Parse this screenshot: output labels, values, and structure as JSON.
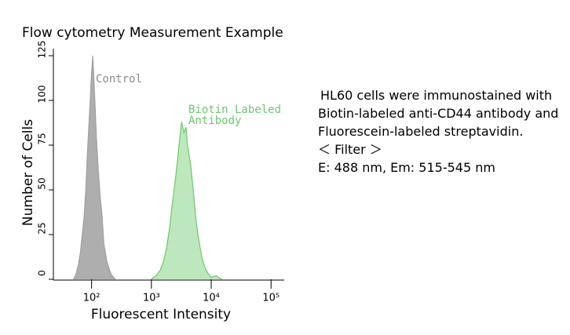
{
  "chart_data": {
    "type": "area",
    "title": "Flow cytometry Measurement Example",
    "xlabel": "Fluorescent Intensity",
    "ylabel": "Number of Cells",
    "xscale": "log",
    "xlim": [
      23,
      166000
    ],
    "ylim": [
      0,
      125
    ],
    "xticks": [
      {
        "value": 100,
        "label": "10²"
      },
      {
        "value": 1000,
        "label": "10³"
      },
      {
        "value": 10000,
        "label": "10⁴"
      },
      {
        "value": 100000,
        "label": "10⁵"
      }
    ],
    "yticks": [
      0,
      25,
      50,
      75,
      100,
      125
    ],
    "series": [
      {
        "name": "Control",
        "color": "#a0a0a0",
        "x": [
          50,
          55,
          60,
          65,
          70,
          75,
          80,
          85,
          90,
          95,
          100,
          105,
          110,
          115,
          120,
          130,
          140,
          150,
          160,
          170,
          180,
          200,
          220,
          250
        ],
        "values": [
          0,
          3,
          8,
          15,
          25,
          35,
          50,
          70,
          85,
          100,
          115,
          125,
          110,
          95,
          80,
          60,
          45,
          35,
          20,
          15,
          10,
          5,
          2,
          0
        ]
      },
      {
        "name": "Biotin Labeled Antibody",
        "color": "#6cc96c",
        "x": [
          1000,
          1200,
          1400,
          1600,
          1800,
          2000,
          2200,
          2500,
          2800,
          3000,
          3200,
          3500,
          3800,
          4000,
          4500,
          5000,
          5500,
          6000,
          7000,
          8000,
          9000,
          10000,
          12000,
          15000
        ],
        "values": [
          0,
          2,
          5,
          10,
          18,
          28,
          40,
          55,
          70,
          80,
          88,
          82,
          85,
          75,
          65,
          50,
          35,
          25,
          12,
          6,
          3,
          1,
          2,
          0
        ]
      }
    ],
    "notes": [
      "HL60 cells were immunostained with Biotin-labeled anti-CD44 antibody and Fluorescein-labeled streptavidin.",
      "＜ Filter ＞",
      "E: 488 nm, Em: 515-545 nm"
    ]
  }
}
